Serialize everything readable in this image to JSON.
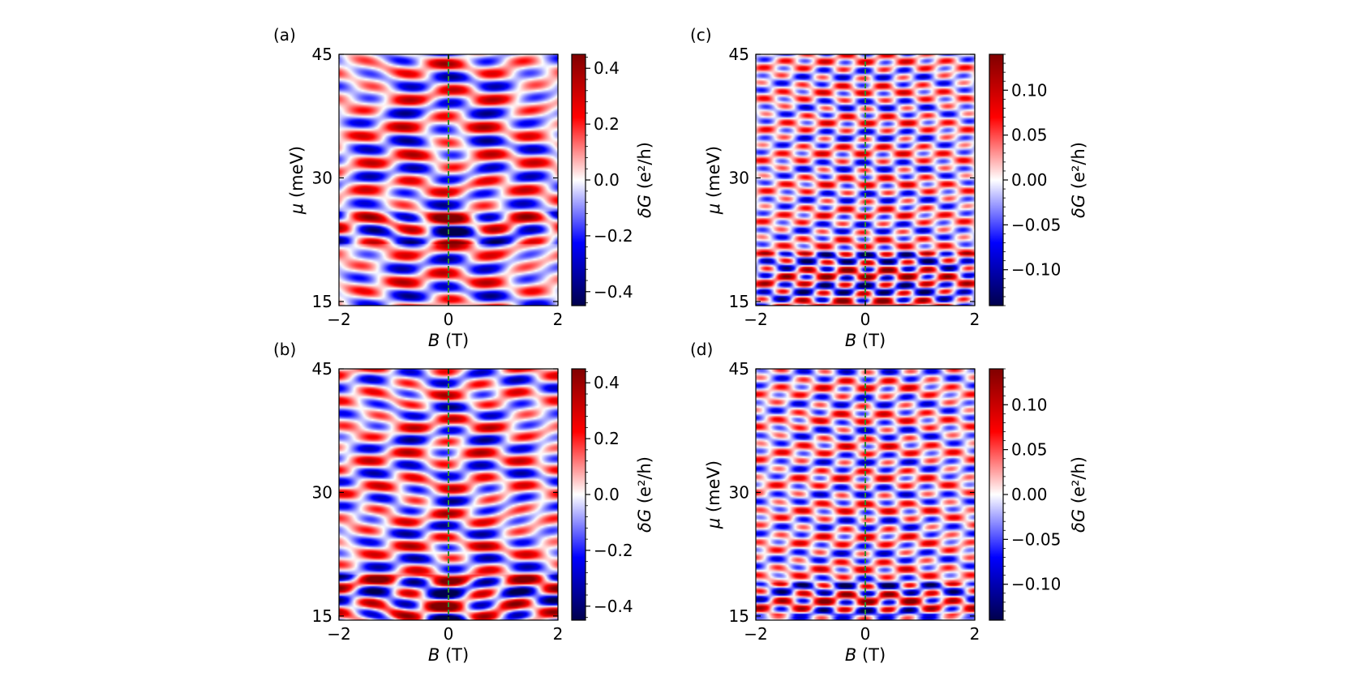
{
  "chart_data": [
    {
      "id": "a",
      "type": "heatmap",
      "panel_label": "(a)",
      "xlabel_symbol": "B",
      "xlabel_unit": "(T)",
      "ylabel_symbol": "μ",
      "ylabel_unit": "(meV)",
      "xlim": [
        -2,
        2
      ],
      "ylim": [
        14.5,
        45
      ],
      "xticks": [
        -2,
        0,
        2
      ],
      "xtick_labels": [
        "−2",
        "0",
        "2"
      ],
      "yticks": [
        15,
        30,
        45
      ],
      "ytick_labels": [
        "15",
        "30",
        "45"
      ],
      "guide_line": {
        "x": 0,
        "color": "#2e8b2e",
        "style": "dashed"
      },
      "colorbar": {
        "label_symbol": "δG",
        "label_unit": "(e²/h)",
        "range": [
          -0.45,
          0.45
        ],
        "ticks": [
          -0.4,
          -0.2,
          0.0,
          0.2,
          0.4
        ],
        "tick_labels": [
          "−0.4",
          "−0.2",
          "0.0",
          "0.2",
          "0.4"
        ],
        "colormap": "seismic"
      },
      "pattern": {
        "amp": 0.42,
        "yfreq": 0.95,
        "xfreq": 4.2,
        "curve": 0.35,
        "seed": 1.3,
        "strong_band": [
          22,
          26
        ]
      }
    },
    {
      "id": "b",
      "type": "heatmap",
      "panel_label": "(b)",
      "xlabel_symbol": "B",
      "xlabel_unit": "(T)",
      "ylabel_symbol": "",
      "ylabel_unit": "",
      "xlim": [
        -2,
        2
      ],
      "ylim": [
        14.5,
        45
      ],
      "xticks": [
        -2,
        0,
        2
      ],
      "xtick_labels": [
        "−2",
        "0",
        "2"
      ],
      "yticks": [
        15,
        30,
        45
      ],
      "ytick_labels": [
        "15",
        "30",
        "45"
      ],
      "guide_line": {
        "x": 0,
        "color": "#2e8b2e",
        "style": "dashed"
      },
      "colorbar": {
        "label_symbol": "δG",
        "label_unit": "(e²/h)",
        "range": [
          -0.45,
          0.45
        ],
        "ticks": [
          -0.4,
          -0.2,
          0.0,
          0.2,
          0.4
        ],
        "tick_labels": [
          "−0.4",
          "−0.2",
          "0.0",
          "0.2",
          "0.4"
        ],
        "colormap": "seismic"
      },
      "pattern": {
        "amp": 0.42,
        "yfreq": 1.05,
        "xfreq": 4.6,
        "curve": 0.45,
        "seed": 2.7,
        "strong_band": [
          14.5,
          20
        ]
      }
    },
    {
      "id": "c",
      "type": "heatmap",
      "panel_label": "(c)",
      "xlabel_symbol": "B",
      "xlabel_unit": "(T)",
      "ylabel_symbol": "μ",
      "ylabel_unit": "(meV)",
      "xlim": [
        -2,
        2
      ],
      "ylim": [
        14.5,
        45
      ],
      "xticks": [
        -2,
        0,
        2
      ],
      "xtick_labels": [
        "−2",
        "0",
        "2"
      ],
      "yticks": [
        15,
        30,
        45
      ],
      "ytick_labels": [
        "15",
        "30",
        "45"
      ],
      "guide_line": {
        "x": 0,
        "color": "#2e8b2e",
        "style": "dashed"
      },
      "colorbar": {
        "label_symbol": "δG",
        "label_unit": "(e²/h)",
        "range": [
          -0.14,
          0.14
        ],
        "ticks": [
          -0.1,
          -0.05,
          0.0,
          0.05,
          0.1
        ],
        "tick_labels": [
          "−0.10",
          "−0.05",
          "0.00",
          "0.05",
          "0.10"
        ],
        "colormap": "seismic"
      },
      "pattern": {
        "amp": 0.11,
        "yfreq": 1.6,
        "xfreq": 8.5,
        "curve": 0.25,
        "seed": 3.9,
        "strong_band": [
          14.5,
          21
        ]
      }
    },
    {
      "id": "d",
      "type": "heatmap",
      "panel_label": "(d)",
      "xlabel_symbol": "B",
      "xlabel_unit": "(T)",
      "ylabel_symbol": "μ",
      "ylabel_unit": "(meV)",
      "xlim": [
        -2,
        2
      ],
      "ylim": [
        14.5,
        45
      ],
      "xticks": [
        -2,
        0,
        2
      ],
      "xtick_labels": [
        "−2",
        "0",
        "2"
      ],
      "yticks": [
        15,
        30,
        45
      ],
      "ytick_labels": [
        "15",
        "30",
        "45"
      ],
      "guide_line": {
        "x": 0,
        "color": "#2e8b2e",
        "style": "dashed"
      },
      "colorbar": {
        "label_symbol": "δG",
        "label_unit": "(e²/h)",
        "range": [
          -0.14,
          0.14
        ],
        "ticks": [
          -0.1,
          -0.05,
          0.0,
          0.05,
          0.1
        ],
        "tick_labels": [
          "−0.10",
          "−0.05",
          "0.00",
          "0.05",
          "0.10"
        ],
        "colormap": "seismic"
      },
      "pattern": {
        "amp": 0.11,
        "yfreq": 1.5,
        "xfreq": 8.0,
        "curve": 0.3,
        "seed": 5.1,
        "strong_band": [
          15,
          19
        ]
      }
    }
  ]
}
